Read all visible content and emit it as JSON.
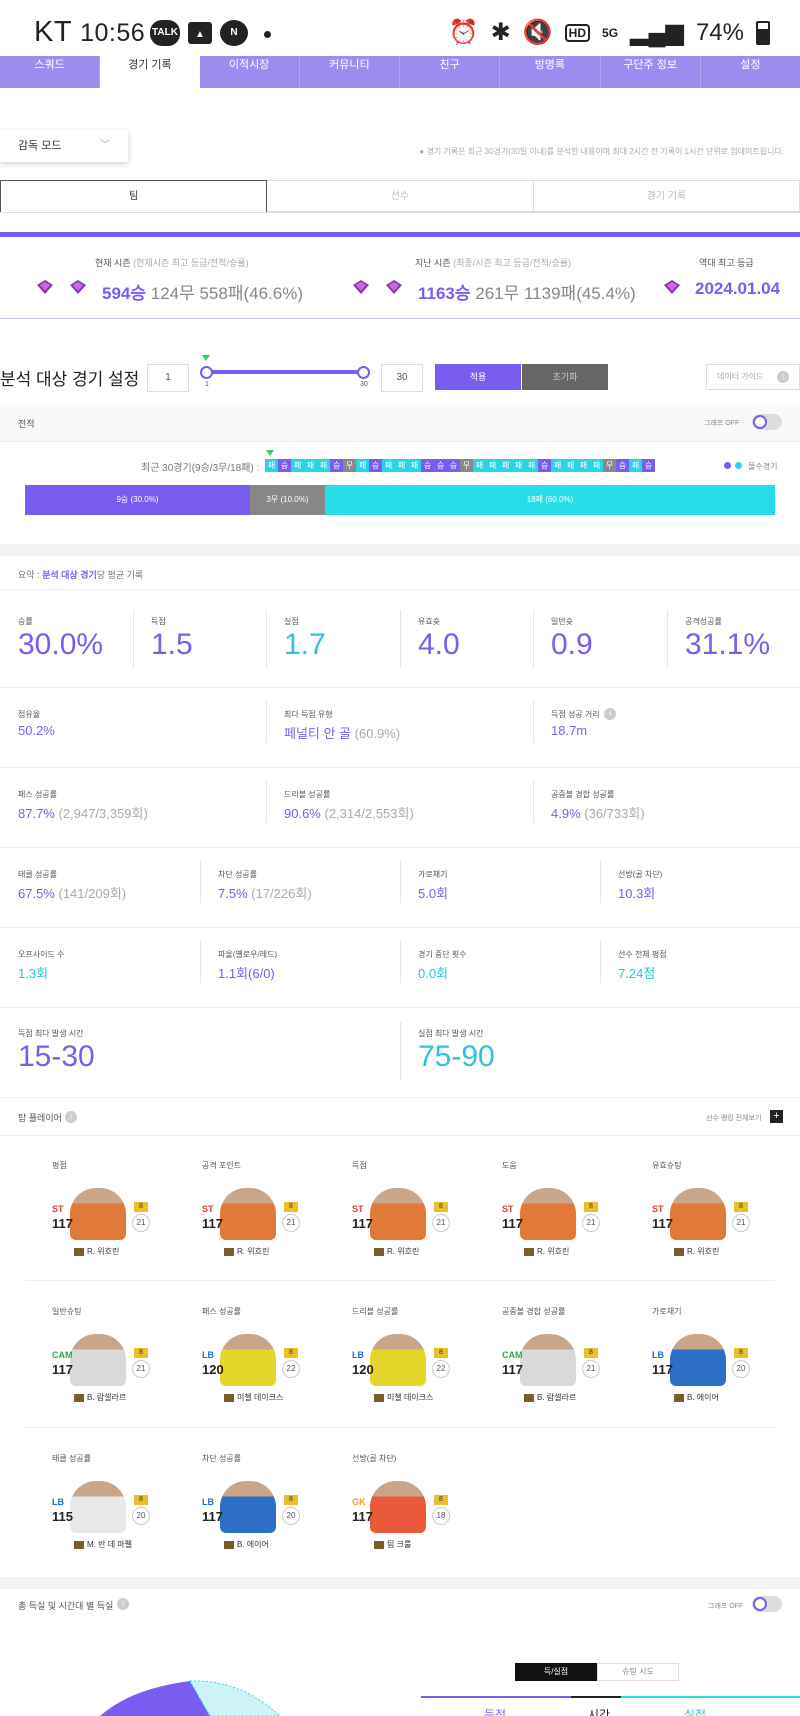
{
  "statusbar": {
    "carrier": "KT",
    "time": "10:56",
    "battery": "74%"
  },
  "nav": [
    "스쿼드",
    "경기 기록",
    "이적시장",
    "커뮤니티",
    "친구",
    "방명록",
    "구단주 정보",
    "설정"
  ],
  "mode": {
    "label": "감독 모드"
  },
  "notice": "● 경기 기록은 최근 30경기(30일 이내)를 분석한 내용이며 최대 2시간 전 기록이 1시간 단위로 업데이트됩니다.",
  "tabs": [
    "팀",
    "선수",
    "경기 기록"
  ],
  "season": {
    "current_label": "현재 시즌",
    "current_sub": "(현재시즌 최고 등급/전적/승률)",
    "current_wins": "594승",
    "current_rest": "124무 558패(46.6%)",
    "last_label": "지난 시즌",
    "last_sub": "(최종/시즌 최고 등급/전적/승률)",
    "last_wins": "1163승",
    "last_rest": "261무 1139패(45.4%)",
    "best_label": "역대 최고 등급",
    "best_value": "2024.01.04"
  },
  "analysis": {
    "title": "분석 대상 경기 설정",
    "from": "1",
    "to": "30",
    "min_label": "1",
    "max_label": "30",
    "apply": "적용",
    "reset": "초기화",
    "guide": "데이터 가이드"
  },
  "record": {
    "title": "전적",
    "graph_toggle": "그래프 OFF",
    "recent_label": "최근 30경기(9승/3무/18패) :",
    "legend": "몰수경기",
    "results": [
      "패",
      "승",
      "패",
      "패",
      "패",
      "승",
      "무",
      "패",
      "승",
      "패",
      "패",
      "패",
      "승",
      "승",
      "승",
      "무",
      "패",
      "패",
      "패",
      "패",
      "패",
      "승",
      "패",
      "패",
      "패",
      "패",
      "무",
      "승",
      "패",
      "승"
    ],
    "win_bar": "9승 (30.0%)",
    "draw_bar": "3무 (10.0%)",
    "loss_bar": "18패 (60.0%)"
  },
  "summary": {
    "prefix": "요약 :",
    "highlight": "분석 대상 경기",
    "suffix": "당 평균 기록"
  },
  "stats_big": [
    {
      "label": "승률",
      "value": "30.0%"
    },
    {
      "label": "득점",
      "value": "1.5"
    },
    {
      "label": "실점",
      "value": "1.7"
    },
    {
      "label": "유효슛",
      "value": "4.0"
    },
    {
      "label": "일반슛",
      "value": "0.9"
    },
    {
      "label": "공격성공률",
      "value": "31.1%"
    }
  ],
  "stats_row2": [
    {
      "label": "점유율",
      "value": "50.2%",
      "extra": ""
    },
    {
      "label": "최다 득점 유형",
      "value": "페널티 안 골",
      "extra": "(60.9%)"
    },
    {
      "label": "득점 성공 거리",
      "value": "18.7m",
      "extra": ""
    }
  ],
  "stats_row3": [
    {
      "label": "패스 성공률",
      "value": "87.7%",
      "extra": "(2,947/3,359회)"
    },
    {
      "label": "드리블 성공률",
      "value": "90.6%",
      "extra": "(2,314/2,553회)"
    },
    {
      "label": "공중볼 경합 성공률",
      "value": "4.9%",
      "extra": "(36/733회)"
    }
  ],
  "stats_row4": [
    {
      "label": "태클 성공률",
      "value": "67.5%",
      "extra": "(141/209회)"
    },
    {
      "label": "차단 성공률",
      "value": "7.5%",
      "extra": "(17/226회)"
    },
    {
      "label": "가로채기",
      "value": "5.0회",
      "extra": ""
    },
    {
      "label": "선방(골 차단)",
      "value": "10.3회",
      "extra": ""
    }
  ],
  "stats_row5": [
    {
      "label": "오프사이드 수",
      "value": "1.3회"
    },
    {
      "label": "파울(옐로우/레드)",
      "value": "1.1회(6/0)"
    },
    {
      "label": "경기 중단 횟수",
      "value": "0.0회"
    },
    {
      "label": "선수 전체 평점",
      "value": "7.24점"
    }
  ],
  "time_stats": [
    {
      "label": "득점 최다 발생 시간",
      "value": "15-30"
    },
    {
      "label": "실점 최다 발생 시간",
      "value": "75-90"
    }
  ],
  "top_players": {
    "title": "탑 플레이어",
    "view_all": "선수 랭킹 전체보기",
    "cards": [
      {
        "cat": "평점",
        "pos": "ST",
        "ovr": "117",
        "lvl": "21",
        "badge": "8",
        "name": "R. 위흐린",
        "color": "#e0793a"
      },
      {
        "cat": "공격 포인트",
        "pos": "ST",
        "ovr": "117",
        "lvl": "21",
        "badge": "8",
        "name": "R. 위흐린",
        "color": "#e0793a"
      },
      {
        "cat": "득점",
        "pos": "ST",
        "ovr": "117",
        "lvl": "21",
        "badge": "8",
        "name": "R. 위흐린",
        "color": "#e0793a"
      },
      {
        "cat": "도움",
        "pos": "ST",
        "ovr": "117",
        "lvl": "21",
        "badge": "8",
        "name": "R. 위흐린",
        "color": "#e0793a"
      },
      {
        "cat": "유효슈팅",
        "pos": "ST",
        "ovr": "117",
        "lvl": "21",
        "badge": "8",
        "name": "R. 위흐린",
        "color": "#e0793a"
      },
      {
        "cat": "일반슈팅",
        "pos": "CAM",
        "ovr": "117",
        "lvl": "21",
        "badge": "8",
        "name": "B. 람셀라르",
        "color": "#d9d9d9"
      },
      {
        "cat": "패스 성공률",
        "pos": "LB",
        "ovr": "120",
        "lvl": "22",
        "badge": "8",
        "name": "미첼 데이크스",
        "color": "#e6d52a"
      },
      {
        "cat": "드리블 성공률",
        "pos": "LB",
        "ovr": "120",
        "lvl": "22",
        "badge": "8",
        "name": "미첼 데이크스",
        "color": "#e6d52a"
      },
      {
        "cat": "공중볼 경합 성공률",
        "pos": "CAM",
        "ovr": "117",
        "lvl": "21",
        "badge": "8",
        "name": "B. 람셀라르",
        "color": "#d9d9d9"
      },
      {
        "cat": "가로채기",
        "pos": "LB",
        "ovr": "117",
        "lvl": "20",
        "badge": "8",
        "name": "B. 에이어",
        "color": "#2d6fc7"
      },
      {
        "cat": "태클 성공률",
        "pos": "LB",
        "ovr": "115",
        "lvl": "20",
        "badge": "8",
        "name": "M. 반 데 마펠",
        "color": "#e8e8e8"
      },
      {
        "cat": "차단 성공률",
        "pos": "LB",
        "ovr": "117",
        "lvl": "20",
        "badge": "8",
        "name": "B. 에이어",
        "color": "#2d6fc7"
      },
      {
        "cat": "선방(골 차단)",
        "pos": "GK",
        "ovr": "117",
        "lvl": "18",
        "badge": "8",
        "name": "팀 크룰",
        "color": "#e85a3a"
      }
    ]
  },
  "bottom": {
    "title": "총 득실 및 시간대 별 득실",
    "graph_toggle": "그래프 OFF",
    "tab_active": "득/실점",
    "tab_other": "슈팅 시도",
    "col1": "득점",
    "col2": "시간",
    "col3": "실점"
  },
  "colors": {
    "accent": "#7a5cf0",
    "cyan": "#27dde8",
    "draw": "#888888"
  }
}
